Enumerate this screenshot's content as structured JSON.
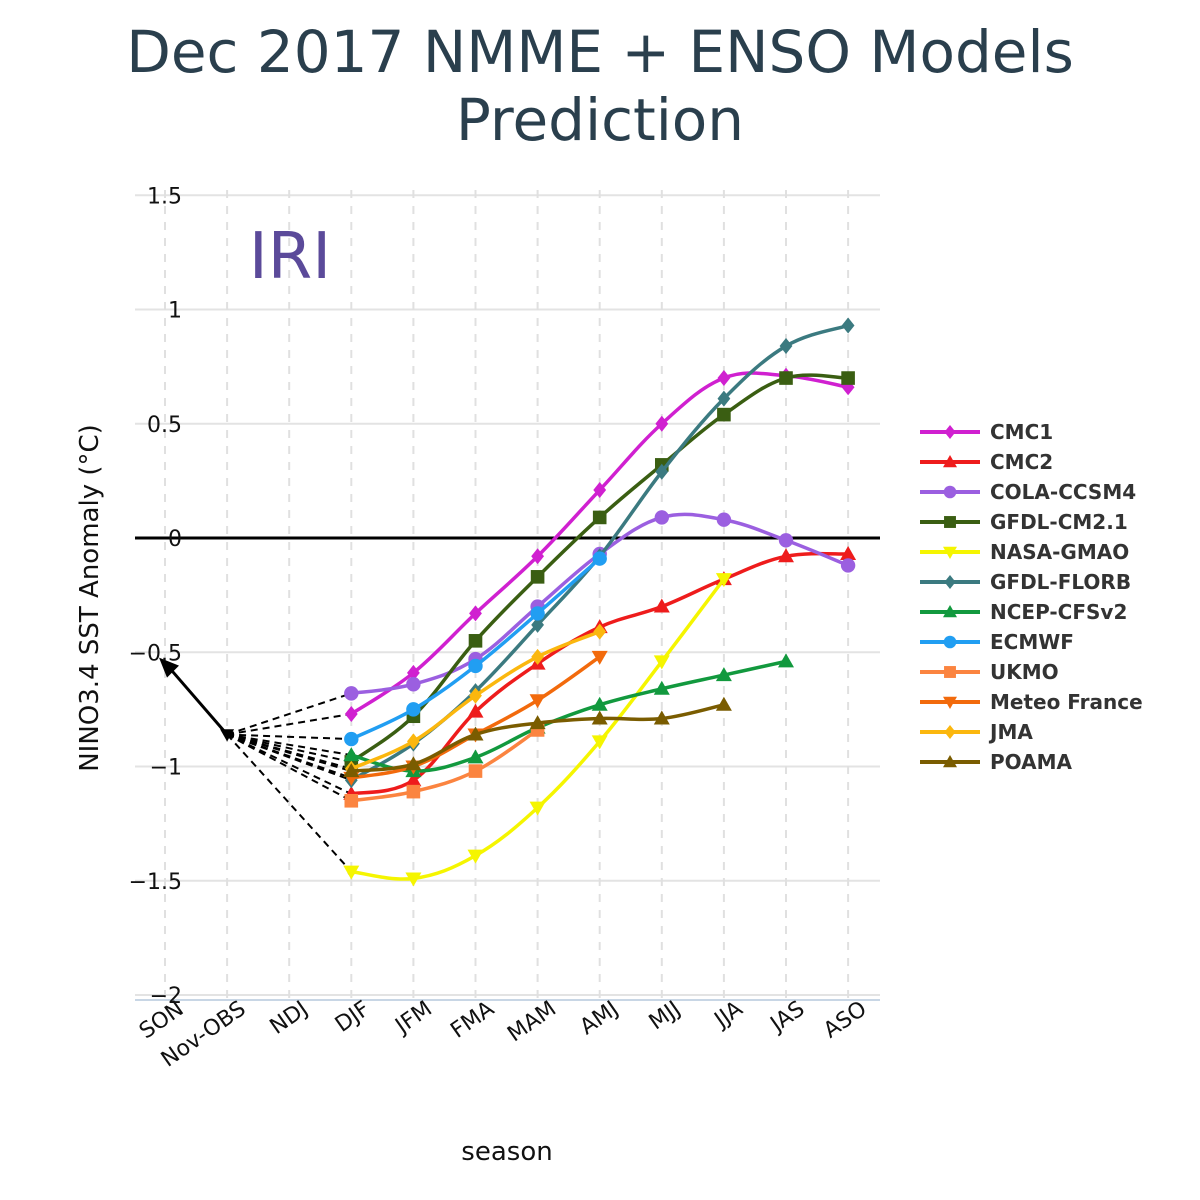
{
  "chart_data": {
    "type": "line",
    "title": [
      "Dec 2017 NMME + ENSO Models",
      "Prediction"
    ],
    "watermark": "IRI",
    "xlabel": "season",
    "ylabel": "NINO3.4 SST Anomaly (°C)",
    "ylim": [
      -2,
      1.5
    ],
    "yticks": [
      1.5,
      1,
      0.5,
      0,
      -0.5,
      -1,
      -1.5,
      -2
    ],
    "ytick_labels": [
      "1.5",
      "1",
      "0.5",
      "0",
      "−0.5",
      "−1",
      "−1.5",
      "−2"
    ],
    "categories": [
      "SON",
      "Nov-OBS",
      "NDJ",
      "DJF",
      "JFM",
      "FMA",
      "MAM",
      "AMJ",
      "MJJ",
      "JJA",
      "JAS",
      "ASO"
    ],
    "grid": true,
    "legend_position": "right",
    "observed": {
      "x": [
        "SON",
        "Nov-OBS"
      ],
      "values": [
        -0.55,
        -0.86
      ]
    },
    "series": [
      {
        "name": "CMC1",
        "color": "#d020d0",
        "marker": "diamond",
        "start": 3,
        "values": [
          -0.77,
          -0.59,
          -0.33,
          -0.08,
          0.21,
          0.5,
          0.7,
          0.71,
          0.66
        ]
      },
      {
        "name": "CMC2",
        "color": "#ee1c1c",
        "marker": "triangle-up",
        "start": 3,
        "values": [
          -1.12,
          -1.06,
          -0.76,
          -0.55,
          -0.39,
          -0.3,
          -0.18,
          -0.08,
          -0.07
        ]
      },
      {
        "name": "COLA-CCSM4",
        "color": "#9b5fe0",
        "marker": "circle",
        "start": 3,
        "values": [
          -0.68,
          -0.64,
          -0.53,
          -0.3,
          -0.07,
          0.09,
          0.08,
          -0.01,
          -0.12
        ]
      },
      {
        "name": "GFDL-CM2.1",
        "color": "#3a5e12",
        "marker": "square",
        "start": 3,
        "values": [
          -0.98,
          -0.78,
          -0.45,
          -0.17,
          0.09,
          0.32,
          0.54,
          0.7,
          0.7
        ]
      },
      {
        "name": "NASA-GMAO",
        "color": "#f5f500",
        "marker": "triangle-down",
        "start": 3,
        "values": [
          -1.46,
          -1.49,
          -1.39,
          -1.18,
          -0.89,
          -0.54,
          -0.18
        ]
      },
      {
        "name": "GFDL-FLORB",
        "color": "#3b7a80",
        "marker": "diamond",
        "start": 3,
        "values": [
          -1.06,
          -0.9,
          -0.67,
          -0.38,
          -0.08,
          0.29,
          0.61,
          0.84,
          0.93
        ]
      },
      {
        "name": "NCEP-CFSv2",
        "color": "#12993e",
        "marker": "triangle-up",
        "start": 3,
        "values": [
          -0.95,
          -1.02,
          -0.96,
          -0.83,
          -0.73,
          -0.66,
          -0.6,
          -0.54
        ]
      },
      {
        "name": "ECMWF",
        "color": "#219ef2",
        "marker": "circle",
        "start": 3,
        "values": [
          -0.88,
          -0.75,
          -0.56,
          -0.33,
          -0.09
        ]
      },
      {
        "name": "UKMO",
        "color": "#fb8440",
        "marker": "square",
        "start": 3,
        "values": [
          -1.15,
          -1.11,
          -1.02,
          -0.84
        ]
      },
      {
        "name": "Meteo France",
        "color": "#f26a0c",
        "marker": "triangle-down",
        "start": 3,
        "values": [
          -1.05,
          -1.0,
          -0.86,
          -0.71,
          -0.52
        ]
      },
      {
        "name": "JMA",
        "color": "#fbb70e",
        "marker": "diamond",
        "start": 3,
        "values": [
          -1.01,
          -0.89,
          -0.69,
          -0.52,
          -0.41
        ]
      },
      {
        "name": "POAMA",
        "color": "#7a5c00",
        "marker": "triangle-up",
        "start": 3,
        "values": [
          -1.02,
          -0.99,
          -0.86,
          -0.81,
          -0.79,
          -0.79,
          -0.73
        ]
      }
    ]
  }
}
